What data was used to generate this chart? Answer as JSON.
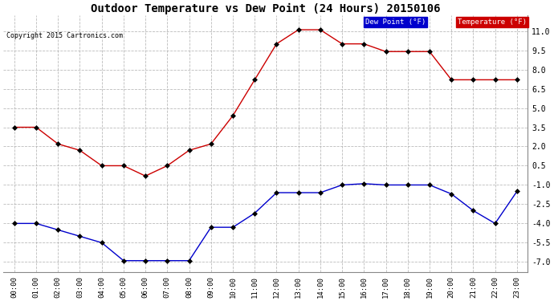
{
  "title": "Outdoor Temperature vs Dew Point (24 Hours) 20150106",
  "copyright": "Copyright 2015 Cartronics.com",
  "hours": [
    "00:00",
    "01:00",
    "02:00",
    "03:00",
    "04:00",
    "05:00",
    "06:00",
    "07:00",
    "08:00",
    "09:00",
    "10:00",
    "11:00",
    "12:00",
    "13:00",
    "14:00",
    "15:00",
    "16:00",
    "17:00",
    "18:00",
    "19:00",
    "20:00",
    "21:00",
    "22:00",
    "23:00"
  ],
  "temperature": [
    3.5,
    3.5,
    2.2,
    1.7,
    0.5,
    0.5,
    -0.3,
    0.5,
    1.7,
    2.2,
    4.4,
    7.2,
    10.0,
    11.1,
    11.1,
    10.0,
    10.0,
    9.4,
    9.4,
    9.4,
    7.2,
    7.2,
    7.2,
    7.2
  ],
  "dewpoint": [
    -4.0,
    -4.0,
    -4.5,
    -5.0,
    -5.5,
    -6.9,
    -6.9,
    -6.9,
    -6.9,
    -4.3,
    -4.3,
    -3.2,
    -1.6,
    -1.6,
    -1.6,
    -1.0,
    -0.9,
    -1.0,
    -1.0,
    -1.0,
    -1.7,
    -3.0,
    -4.0,
    -1.5
  ],
  "temp_color": "#cc0000",
  "dew_color": "#0000cc",
  "marker_color": "#000000",
  "bg_color": "#ffffff",
  "grid_color": "#aaaaaa",
  "ylim_min": -7.8,
  "ylim_max": 12.2,
  "yticks": [
    -7.0,
    -5.5,
    -4.0,
    -2.5,
    -1.0,
    0.5,
    2.0,
    3.5,
    5.0,
    6.5,
    8.0,
    9.5,
    11.0
  ],
  "legend_dew_bg": "#0000cc",
  "legend_temp_bg": "#cc0000",
  "legend_dew_text": "Dew Point (°F)",
  "legend_temp_text": "Temperature (°F)"
}
